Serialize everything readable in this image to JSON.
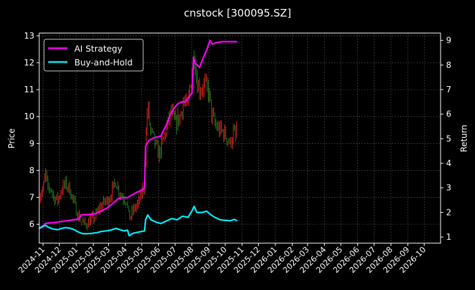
{
  "chart_data": {
    "type": "line",
    "title": "cnstock [300095.SZ]",
    "ylabel_left": "Price",
    "ylabel_right": "Return",
    "grid": true,
    "legend_position": "top-left",
    "x_ticks": [
      "2024-11",
      "2024-12",
      "2025-01",
      "2025-02",
      "2025-03",
      "2025-04",
      "2025-05",
      "2025-06",
      "2025-07",
      "2025-08",
      "2025-09",
      "2025-10",
      "2025-11",
      "2025-12",
      "2026-01",
      "2026-02",
      "2026-03",
      "2026-04",
      "2026-05",
      "2026-06",
      "2026-07",
      "2026-08",
      "2026-09",
      "2026-10"
    ],
    "y_left": {
      "range": [
        5.3,
        13.1
      ],
      "ticks": [
        6,
        7,
        8,
        9,
        10,
        11,
        12,
        13
      ]
    },
    "y_right": {
      "range": [
        0.75,
        9.3
      ],
      "ticks": [
        1,
        2,
        3,
        4,
        5,
        6,
        7,
        8,
        9
      ]
    },
    "x_range": [
      "2024-10-25",
      "2026-10-31"
    ],
    "colors": {
      "up": "#ff2020",
      "down": "#1f8a1f",
      "ai": "#ff00ff",
      "bh": "#00f0ff"
    },
    "price_path": [
      [
        "2024-10-25",
        7.1
      ],
      [
        "2024-11-01",
        7.3
      ],
      [
        "2024-11-06",
        7.9
      ],
      [
        "2024-11-10",
        7.2
      ],
      [
        "2024-11-15",
        7.4
      ],
      [
        "2024-11-20",
        7.0
      ],
      [
        "2024-11-28",
        6.9
      ],
      [
        "2024-12-05",
        7.3
      ],
      [
        "2024-12-12",
        7.5
      ],
      [
        "2024-12-20",
        7.3
      ],
      [
        "2024-12-26",
        6.9
      ],
      [
        "2025-01-03",
        6.4
      ],
      [
        "2025-01-10",
        6.1
      ],
      [
        "2025-01-17",
        6.0
      ],
      [
        "2025-01-25",
        6.1
      ],
      [
        "2025-02-05",
        6.3
      ],
      [
        "2025-02-12",
        6.6
      ],
      [
        "2025-02-20",
        6.8
      ],
      [
        "2025-02-28",
        6.9
      ],
      [
        "2025-03-07",
        7.2
      ],
      [
        "2025-03-14",
        7.6
      ],
      [
        "2025-03-21",
        7.2
      ],
      [
        "2025-03-28",
        7.0
      ],
      [
        "2025-04-03",
        6.9
      ],
      [
        "2025-04-08",
        6.2
      ],
      [
        "2025-04-15",
        6.5
      ],
      [
        "2025-04-25",
        6.8
      ],
      [
        "2025-05-05",
        7.4
      ],
      [
        "2025-05-08",
        9.0
      ],
      [
        "2025-05-12",
        10.5
      ],
      [
        "2025-05-16",
        9.5
      ],
      [
        "2025-05-22",
        9.2
      ],
      [
        "2025-06-01",
        8.6
      ],
      [
        "2025-06-08",
        9.0
      ],
      [
        "2025-06-16",
        9.6
      ],
      [
        "2025-06-24",
        10.2
      ],
      [
        "2025-07-01",
        9.7
      ],
      [
        "2025-07-10",
        10.0
      ],
      [
        "2025-07-17",
        10.6
      ],
      [
        "2025-07-24",
        10.3
      ],
      [
        "2025-08-01",
        11.8
      ],
      [
        "2025-08-05",
        12.4
      ],
      [
        "2025-08-10",
        11.3
      ],
      [
        "2025-08-16",
        11.0
      ],
      [
        "2025-08-24",
        11.2
      ],
      [
        "2025-09-01",
        10.9
      ],
      [
        "2025-09-06",
        10.1
      ],
      [
        "2025-09-12",
        9.7
      ],
      [
        "2025-09-20",
        9.5
      ],
      [
        "2025-09-28",
        9.4
      ],
      [
        "2025-10-05",
        9.2
      ],
      [
        "2025-10-10",
        9.0
      ],
      [
        "2025-10-16",
        9.4
      ],
      [
        "2025-10-20",
        9.2
      ],
      [
        "2025-10-23",
        9.7
      ]
    ],
    "series": [
      {
        "name": "AI Strategy",
        "color": "#ff00ff",
        "points": [
          [
            "2024-10-25",
            1.35
          ],
          [
            "2024-11-01",
            1.4
          ],
          [
            "2024-11-05",
            1.55
          ],
          [
            "2024-11-15",
            1.58
          ],
          [
            "2024-11-25",
            1.6
          ],
          [
            "2024-12-10",
            1.65
          ],
          [
            "2024-12-25",
            1.7
          ],
          [
            "2025-01-05",
            1.72
          ],
          [
            "2025-01-10",
            1.9
          ],
          [
            "2025-01-25",
            1.92
          ],
          [
            "2025-02-05",
            1.95
          ],
          [
            "2025-02-15",
            2.05
          ],
          [
            "2025-02-28",
            2.2
          ],
          [
            "2025-03-08",
            2.35
          ],
          [
            "2025-03-18",
            2.55
          ],
          [
            "2025-03-25",
            2.6
          ],
          [
            "2025-04-05",
            2.6
          ],
          [
            "2025-04-12",
            2.7
          ],
          [
            "2025-04-20",
            2.8
          ],
          [
            "2025-05-01",
            2.9
          ],
          [
            "2025-05-06",
            3.0
          ],
          [
            "2025-05-08",
            4.7
          ],
          [
            "2025-05-15",
            4.95
          ],
          [
            "2025-05-25",
            5.05
          ],
          [
            "2025-06-05",
            5.1
          ],
          [
            "2025-06-10",
            5.35
          ],
          [
            "2025-06-15",
            5.55
          ],
          [
            "2025-06-22",
            5.95
          ],
          [
            "2025-06-28",
            6.2
          ],
          [
            "2025-07-05",
            6.4
          ],
          [
            "2025-07-12",
            6.5
          ],
          [
            "2025-07-20",
            6.5
          ],
          [
            "2025-07-27",
            6.7
          ],
          [
            "2025-08-01",
            6.85
          ],
          [
            "2025-08-04",
            8.3
          ],
          [
            "2025-08-06",
            8.1
          ],
          [
            "2025-08-15",
            7.9
          ],
          [
            "2025-08-22",
            8.3
          ],
          [
            "2025-08-28",
            8.6
          ],
          [
            "2025-09-03",
            9.0
          ],
          [
            "2025-09-08",
            8.85
          ],
          [
            "2025-09-13",
            8.9
          ],
          [
            "2025-09-25",
            8.95
          ],
          [
            "2025-10-10",
            8.95
          ],
          [
            "2025-10-23",
            8.95
          ]
        ]
      },
      {
        "name": "Buy-and-Hold",
        "color": "#00f0ff",
        "points": [
          [
            "2024-10-25",
            1.35
          ],
          [
            "2024-11-01",
            1.45
          ],
          [
            "2024-11-06",
            1.47
          ],
          [
            "2024-11-12",
            1.38
          ],
          [
            "2024-11-20",
            1.32
          ],
          [
            "2024-11-28",
            1.3
          ],
          [
            "2024-12-05",
            1.35
          ],
          [
            "2024-12-12",
            1.38
          ],
          [
            "2024-12-20",
            1.36
          ],
          [
            "2024-12-28",
            1.3
          ],
          [
            "2025-01-05",
            1.2
          ],
          [
            "2025-01-12",
            1.14
          ],
          [
            "2025-01-20",
            1.13
          ],
          [
            "2025-01-30",
            1.15
          ],
          [
            "2025-02-08",
            1.18
          ],
          [
            "2025-02-15",
            1.22
          ],
          [
            "2025-02-25",
            1.25
          ],
          [
            "2025-03-05",
            1.28
          ],
          [
            "2025-03-15",
            1.35
          ],
          [
            "2025-03-22",
            1.3
          ],
          [
            "2025-03-30",
            1.25
          ],
          [
            "2025-04-05",
            1.28
          ],
          [
            "2025-04-08",
            1.05
          ],
          [
            "2025-04-15",
            1.15
          ],
          [
            "2025-04-25",
            1.2
          ],
          [
            "2025-05-06",
            1.25
          ],
          [
            "2025-05-08",
            1.7
          ],
          [
            "2025-05-12",
            1.9
          ],
          [
            "2025-05-18",
            1.7
          ],
          [
            "2025-05-28",
            1.6
          ],
          [
            "2025-06-05",
            1.55
          ],
          [
            "2025-06-15",
            1.65
          ],
          [
            "2025-06-25",
            1.75
          ],
          [
            "2025-07-05",
            1.7
          ],
          [
            "2025-07-15",
            1.85
          ],
          [
            "2025-07-25",
            1.8
          ],
          [
            "2025-08-02",
            2.1
          ],
          [
            "2025-08-05",
            2.25
          ],
          [
            "2025-08-10",
            2.0
          ],
          [
            "2025-08-20",
            2.0
          ],
          [
            "2025-08-28",
            2.05
          ],
          [
            "2025-09-05",
            1.9
          ],
          [
            "2025-09-12",
            1.8
          ],
          [
            "2025-09-22",
            1.7
          ],
          [
            "2025-10-01",
            1.68
          ],
          [
            "2025-10-10",
            1.66
          ],
          [
            "2025-10-18",
            1.72
          ],
          [
            "2025-10-23",
            1.65
          ]
        ]
      }
    ]
  }
}
